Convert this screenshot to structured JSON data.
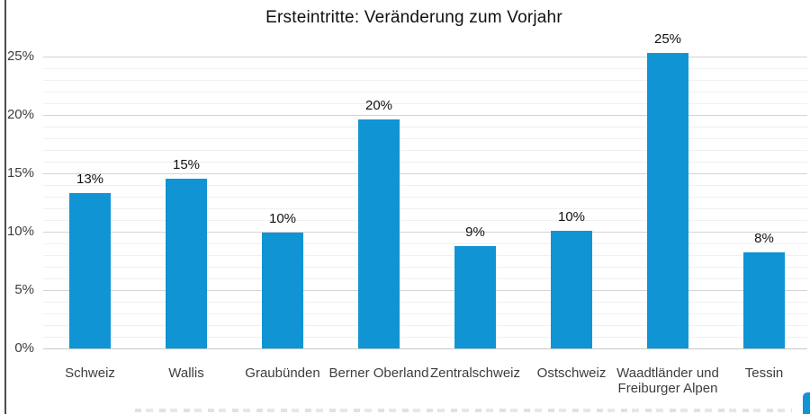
{
  "title": "Ersteintritte: Veränderung zum Vorjahr",
  "chart_data": {
    "type": "bar",
    "title": "Ersteintritte: Veränderung zum Vorjahr",
    "categories": [
      "Schweiz",
      "Wallis",
      "Graubünden",
      "Berner Oberland",
      "Zentralschweiz",
      "Ostschweiz",
      "Waadtländer und Freiburger Alpen",
      "Tessin"
    ],
    "values": [
      13.3,
      14.5,
      9.9,
      19.6,
      8.8,
      10.1,
      25.3,
      8.2
    ],
    "bar_labels": [
      "13%",
      "15%",
      "10%",
      "20%",
      "9%",
      "10%",
      "25%",
      "8%"
    ],
    "xlabel": "",
    "ylabel": "",
    "ylim": [
      0,
      25
    ],
    "yticks": [
      {
        "value": 0,
        "label": "0%"
      },
      {
        "value": 5,
        "label": "5%"
      },
      {
        "value": 10,
        "label": "10%"
      },
      {
        "value": 15,
        "label": "15%"
      },
      {
        "value": 20,
        "label": "20%"
      },
      {
        "value": 25,
        "label": "25%"
      }
    ],
    "minor_grid_step": 1,
    "major_grid_step": 5,
    "grid": true,
    "legend_position": "none",
    "bar_color": "#1194d4"
  },
  "colors": {
    "bar": "#1194d4",
    "major_gridline": "#d4d4d4",
    "minor_gridline": "#f0f0f0",
    "baseline": "#c7c7c7",
    "title_text": "#111111",
    "axis_text": "#3d3d3d",
    "frame_line": "#4d4d4d"
  }
}
